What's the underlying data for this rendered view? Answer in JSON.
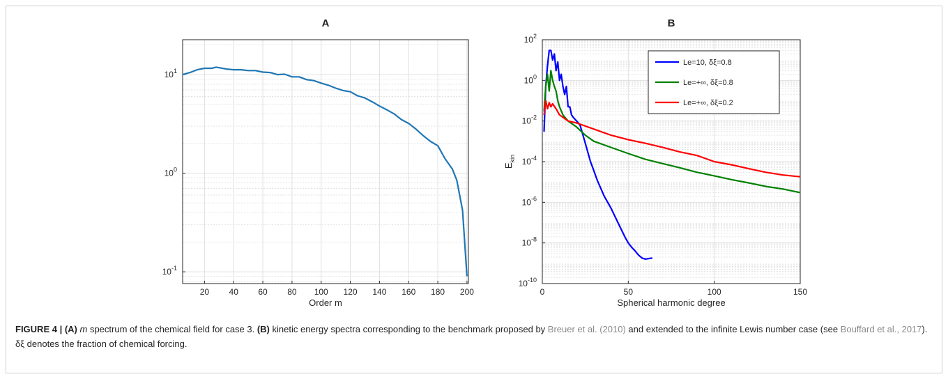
{
  "chart_data": [
    {
      "type": "line",
      "title": "A",
      "xlabel": "Order m",
      "log_y": true,
      "grid": true,
      "xlim": [
        5,
        201
      ],
      "xticks": [
        20,
        40,
        60,
        80,
        100,
        120,
        140,
        160,
        180,
        200
      ],
      "ylim": [
        0.076,
        22.6
      ],
      "yticks": [
        {
          "value": 0.1,
          "label": "10^-1"
        },
        {
          "value": 1,
          "label": "10^0"
        },
        {
          "value": 10,
          "label": "10^1"
        }
      ],
      "series": [
        {
          "name": null,
          "color": "#1f77b4",
          "x": [
            5,
            10,
            15,
            20,
            25,
            28,
            35,
            40,
            45,
            50,
            55,
            60,
            65,
            70,
            75,
            80,
            85,
            90,
            95,
            100,
            105,
            110,
            115,
            120,
            125,
            130,
            135,
            140,
            145,
            150,
            155,
            160,
            165,
            170,
            175,
            180,
            185,
            190,
            193,
            195,
            197,
            198,
            200
          ],
          "values": [
            10,
            10.5,
            11.2,
            11.6,
            11.6,
            11.9,
            11.4,
            11.2,
            11.2,
            11,
            11,
            10.6,
            10.5,
            10,
            10.1,
            9.5,
            9.5,
            8.9,
            8.7,
            8.2,
            7.8,
            7.3,
            6.9,
            6.7,
            6.1,
            5.8,
            5.3,
            4.8,
            4.4,
            4.0,
            3.5,
            3.2,
            2.8,
            2.4,
            2.1,
            1.9,
            1.4,
            1.1,
            0.85,
            0.6,
            0.42,
            0.25,
            0.09
          ]
        }
      ]
    },
    {
      "type": "line",
      "title": "B",
      "xlabel": "Spherical harmonic degree",
      "ylabel": "E",
      "ylabel_sub": "kin",
      "log_y": true,
      "grid": true,
      "legend": "upper right",
      "xlim": [
        0,
        150
      ],
      "xticks": [
        0,
        50,
        100,
        150
      ],
      "ylim": [
        1e-10,
        100
      ],
      "yticks": [
        {
          "value": 1e-10,
          "label": "10^-10"
        },
        {
          "value": 1e-08,
          "label": "10^-8"
        },
        {
          "value": 1e-06,
          "label": "10^-6"
        },
        {
          "value": 0.0001,
          "label": "10^-4"
        },
        {
          "value": 0.01,
          "label": "10^-2"
        },
        {
          "value": 1,
          "label": "10^0"
        },
        {
          "value": 100,
          "label": "10^2"
        }
      ],
      "series": [
        {
          "name": "Le=10,  δξ=0.8",
          "color": "#0000ff",
          "x": [
            1,
            2,
            3,
            4,
            5,
            6,
            7,
            8,
            9,
            10,
            11,
            12,
            13,
            14,
            15,
            16,
            17,
            18,
            20,
            22,
            25,
            28,
            30,
            32,
            36,
            40,
            44,
            48,
            50,
            52,
            54,
            56,
            58,
            60,
            62,
            64
          ],
          "values": [
            0.003,
            0.5,
            5,
            30,
            30,
            10,
            20,
            3,
            8,
            1,
            2,
            0.5,
            0.2,
            0.5,
            0.05,
            0.05,
            0.02,
            0.015,
            0.01,
            0.006,
            0.0008,
            0.0001,
            3.5e-05,
            1.2e-05,
            2e-06,
            5e-07,
            1e-07,
            2e-08,
            1e-08,
            6e-09,
            4e-09,
            2.5e-09,
            1.8e-09,
            1.6e-09,
            1.7e-09,
            1.8e-09
          ]
        },
        {
          "name": "Le=+∞,  δξ=0.8",
          "color": "#008000",
          "x": [
            1,
            2,
            3,
            4,
            5,
            6,
            7,
            8,
            9,
            10,
            12,
            15,
            20,
            25,
            30,
            40,
            50,
            60,
            70,
            80,
            90,
            100,
            110,
            120,
            130,
            140,
            150
          ],
          "values": [
            0.03,
            0.5,
            2,
            0.3,
            3,
            1,
            0.5,
            0.3,
            0.1,
            0.05,
            0.02,
            0.01,
            0.005,
            0.002,
            0.001,
            0.0005,
            0.00025,
            0.00013,
            8e-05,
            5e-05,
            3e-05,
            2e-05,
            1.3e-05,
            9e-06,
            6e-06,
            4.5e-06,
            3e-06
          ]
        },
        {
          "name": "Le=+∞,  δξ=0.2",
          "color": "#ff0000",
          "x": [
            1,
            2,
            3,
            4,
            5,
            6,
            8,
            10,
            15,
            20,
            30,
            40,
            50,
            60,
            70,
            80,
            90,
            100,
            110,
            120,
            130,
            140,
            150
          ],
          "values": [
            0.02,
            0.1,
            0.04,
            0.08,
            0.05,
            0.07,
            0.04,
            0.02,
            0.01,
            0.008,
            0.004,
            0.002,
            0.0012,
            0.0008,
            0.0005,
            0.0003,
            0.0002,
            0.0001,
            7e-05,
            4.5e-05,
            3e-05,
            2.2e-05,
            1.8e-05
          ]
        }
      ]
    }
  ],
  "caption": [
    {
      "text": "FIGURE 4 | (A)",
      "style": "bold"
    },
    {
      "text": " ",
      "style": "plain"
    },
    {
      "text": "m",
      "style": "italic"
    },
    {
      "text": " spectrum of the chemical field for case 3. ",
      "style": "plain"
    },
    {
      "text": "(B)",
      "style": "bold"
    },
    {
      "text": " kinetic energy spectra corresponding to the benchmark proposed by ",
      "style": "plain"
    },
    {
      "text": "Breuer et al. (2010)",
      "style": "link"
    },
    {
      "text": " and extended to the infinite Lewis number case (see ",
      "style": "plain"
    },
    {
      "text": "Bouffard et al., 2017",
      "style": "link"
    },
    {
      "text": "). δξ denotes the fraction of chemical forcing.",
      "style": "plain"
    }
  ]
}
